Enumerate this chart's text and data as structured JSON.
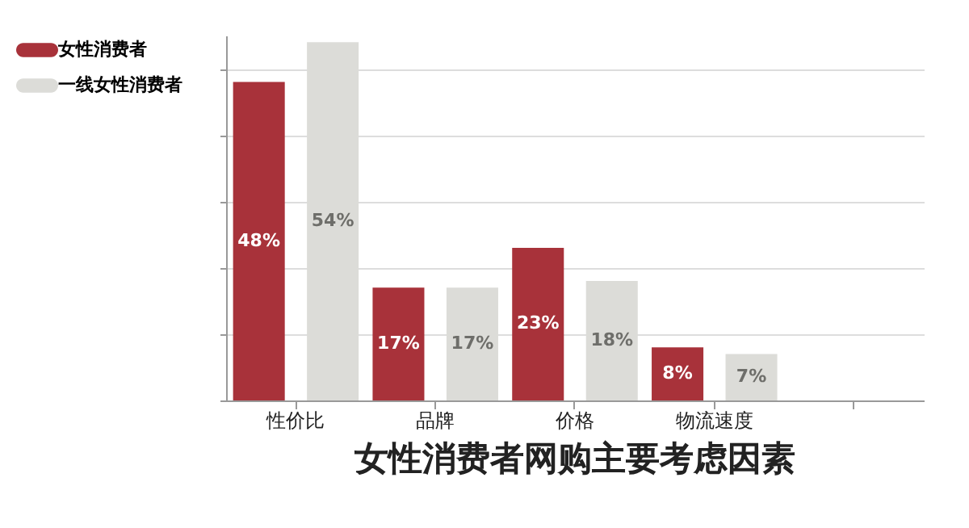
{
  "chart_data": {
    "type": "bar",
    "title": "女性消费者网购主要考虑因素",
    "categories": [
      "性价比",
      "品牌",
      "价格",
      "物流速度",
      null
    ],
    "series": [
      {
        "name": "女性消费者",
        "color": "#a8323a",
        "values": [
          48,
          17,
          23,
          8,
          null
        ],
        "value_labels": [
          "48%",
          "17%",
          "23%",
          "8%",
          null
        ]
      },
      {
        "name": "一线女性消费者",
        "color": "#dcdcd8",
        "values": [
          54,
          17,
          18,
          7,
          null
        ],
        "value_labels": [
          "54%",
          "17%",
          "18%",
          "7%",
          null
        ]
      }
    ],
    "ylim": [
      0,
      55
    ],
    "yticks": [
      {
        "value": 0,
        "label": null
      },
      {
        "value": 10,
        "label": null
      },
      {
        "value": 20,
        "label": null
      },
      {
        "value": 30,
        "label": null
      },
      {
        "value": 40,
        "label": null
      },
      {
        "value": 50,
        "label": null
      }
    ],
    "grid": "y",
    "legend": "top left",
    "tick_labels": "x"
  }
}
